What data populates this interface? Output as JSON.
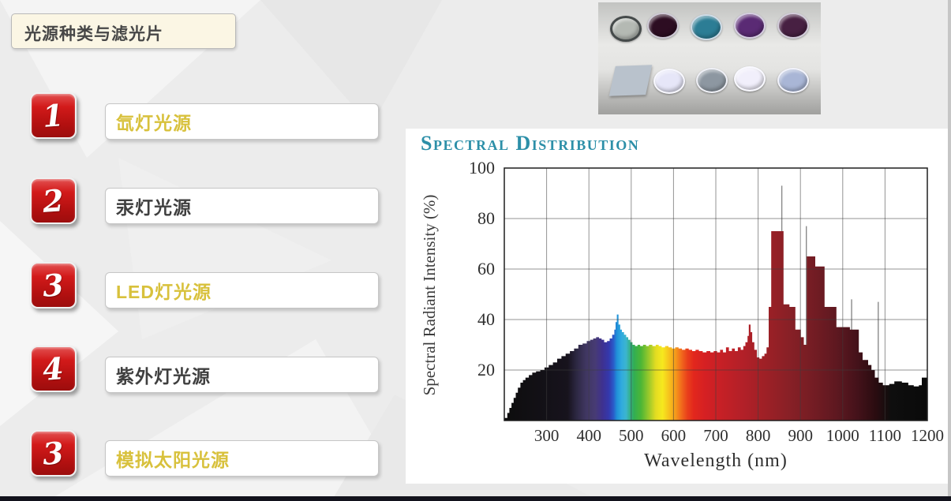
{
  "slide": {
    "title": "光源种类与滤光片",
    "gold_color": "#d8c13c",
    "dark_color": "#3f3f3f",
    "badge_red": "#c21414",
    "list_items": [
      {
        "number": "1",
        "label": "氙灯光源",
        "color": "gold"
      },
      {
        "number": "2",
        "label": "汞灯光源",
        "color": "dark"
      },
      {
        "number": "3",
        "label": "LED灯光源",
        "color": "gold"
      },
      {
        "number": "4",
        "label": "紫外灯光源",
        "color": "dark"
      },
      {
        "number": "3",
        "label": "模拟太阳光源",
        "color": "gold"
      }
    ]
  },
  "filters_photo": {
    "row1_circles": [
      "#b4b9b3",
      "#2d0d22",
      "#2c7d95",
      "#5a2a74",
      "#472042"
    ],
    "row1_first_ring": "#454a4a",
    "row2_square": "#b9c2cc",
    "row2_circles": [
      "#e6e6f8",
      "#8d97a1",
      "#f1effb",
      "#a9b6d6"
    ]
  },
  "chart_data": {
    "type": "area",
    "title": "Spectral Distribution",
    "xlabel": "Wavelength (nm)",
    "ylabel": "Spectral Radiant Intensity (%)",
    "xlim": [
      200,
      1200
    ],
    "ylim": [
      0,
      100
    ],
    "x_ticks": [
      300,
      400,
      500,
      600,
      700,
      800,
      900,
      1000,
      1100,
      1200
    ],
    "y_ticks": [
      20,
      40,
      60,
      80,
      100
    ],
    "grid": true,
    "legend": "none",
    "title_color": "#2c8fa8",
    "steps": [
      [
        200,
        1
      ],
      [
        207,
        3
      ],
      [
        212,
        5
      ],
      [
        217,
        7
      ],
      [
        222,
        9
      ],
      [
        227,
        11
      ],
      [
        232,
        13
      ],
      [
        238,
        15
      ],
      [
        244,
        16
      ],
      [
        250,
        17
      ],
      [
        258,
        18
      ],
      [
        266,
        19
      ],
      [
        275,
        19.5
      ],
      [
        285,
        20
      ],
      [
        295,
        21
      ],
      [
        305,
        22
      ],
      [
        315,
        23
      ],
      [
        325,
        24.5
      ],
      [
        335,
        25.5
      ],
      [
        345,
        26.5
      ],
      [
        355,
        27.5
      ],
      [
        365,
        28.5
      ],
      [
        375,
        30
      ],
      [
        385,
        30.5
      ],
      [
        395,
        31.5
      ],
      [
        403,
        32
      ],
      [
        410,
        32.5
      ],
      [
        417,
        33
      ],
      [
        424,
        32.5
      ],
      [
        430,
        32
      ],
      [
        436,
        31
      ],
      [
        443,
        31.5
      ],
      [
        449,
        32.5
      ],
      [
        455,
        34
      ],
      [
        460,
        36
      ],
      [
        463,
        39
      ],
      [
        466,
        42
      ],
      [
        470,
        38
      ],
      [
        474,
        36
      ],
      [
        478,
        35
      ],
      [
        483,
        34
      ],
      [
        488,
        33
      ],
      [
        493,
        32
      ],
      [
        498,
        31
      ],
      [
        503,
        30
      ],
      [
        509,
        29.5
      ],
      [
        515,
        30
      ],
      [
        521,
        29.5
      ],
      [
        528,
        30
      ],
      [
        535,
        29.5
      ],
      [
        542,
        30
      ],
      [
        550,
        29.5
      ],
      [
        558,
        30
      ],
      [
        565,
        29.5
      ],
      [
        572,
        29
      ],
      [
        580,
        29.5
      ],
      [
        588,
        29
      ],
      [
        596,
        28.5
      ],
      [
        604,
        29
      ],
      [
        612,
        28.5
      ],
      [
        620,
        28
      ],
      [
        628,
        28.5
      ],
      [
        636,
        28
      ],
      [
        644,
        27.5
      ],
      [
        652,
        28
      ],
      [
        660,
        27.5
      ],
      [
        669,
        27
      ],
      [
        678,
        27.5
      ],
      [
        687,
        27
      ],
      [
        695,
        27.5
      ],
      [
        703,
        27
      ],
      [
        710,
        28
      ],
      [
        717,
        27
      ],
      [
        724,
        29
      ],
      [
        731,
        27.5
      ],
      [
        738,
        28.5
      ],
      [
        745,
        27.5
      ],
      [
        752,
        29
      ],
      [
        759,
        28
      ],
      [
        765,
        29.5
      ],
      [
        770,
        31
      ],
      [
        775,
        33.5
      ],
      [
        778,
        38
      ],
      [
        782,
        35
      ],
      [
        786,
        31
      ],
      [
        791,
        28
      ],
      [
        797,
        25
      ],
      [
        803,
        24.5
      ],
      [
        809,
        25.5
      ],
      [
        815,
        26.5
      ],
      [
        820,
        29
      ],
      [
        825,
        45
      ],
      [
        831,
        75
      ],
      [
        860,
        46
      ],
      [
        874,
        45
      ],
      [
        888,
        36
      ],
      [
        901,
        33
      ],
      [
        908,
        30
      ],
      [
        915,
        65
      ],
      [
        935,
        61
      ],
      [
        957,
        45
      ],
      [
        985,
        37
      ],
      [
        1017,
        36
      ],
      [
        1038,
        27
      ],
      [
        1047,
        24
      ],
      [
        1060,
        22
      ],
      [
        1068,
        20
      ],
      [
        1076,
        17
      ],
      [
        1085,
        15
      ],
      [
        1095,
        14
      ],
      [
        1110,
        14.5
      ],
      [
        1122,
        15.5
      ],
      [
        1140,
        15
      ],
      [
        1155,
        14
      ],
      [
        1168,
        13.5
      ],
      [
        1180,
        14
      ],
      [
        1187,
        17
      ]
    ],
    "spikes": [
      [
        856,
        93
      ],
      [
        914,
        77
      ],
      [
        1021,
        48
      ],
      [
        1084,
        47
      ]
    ],
    "spectrum_colors": [
      [
        200,
        "#0d0d0d"
      ],
      [
        350,
        "#17131d"
      ],
      [
        370,
        "#2c2741"
      ],
      [
        392,
        "#3f3660"
      ],
      [
        415,
        "#473b74"
      ],
      [
        432,
        "#3e3190"
      ],
      [
        447,
        "#3438ac"
      ],
      [
        458,
        "#2a5ac9"
      ],
      [
        466,
        "#2090d8"
      ],
      [
        477,
        "#30aadf"
      ],
      [
        488,
        "#3cb5cd"
      ],
      [
        497,
        "#34b18b"
      ],
      [
        507,
        "#32ae52"
      ],
      [
        523,
        "#4cb636"
      ],
      [
        543,
        "#a0ca2a"
      ],
      [
        558,
        "#e3dc22"
      ],
      [
        574,
        "#f6e91e"
      ],
      [
        589,
        "#f6c31d"
      ],
      [
        604,
        "#f59c1b"
      ],
      [
        619,
        "#f1691c"
      ],
      [
        633,
        "#e93f1b"
      ],
      [
        648,
        "#e2271d"
      ],
      [
        675,
        "#d52023"
      ],
      [
        715,
        "#c52026"
      ],
      [
        765,
        "#b22028"
      ],
      [
        815,
        "#9f2026"
      ],
      [
        865,
        "#8b2026"
      ],
      [
        925,
        "#761d24"
      ],
      [
        985,
        "#5e1820"
      ],
      [
        1035,
        "#44121a"
      ],
      [
        1078,
        "#2a0c10"
      ],
      [
        1115,
        "#0e0e0e"
      ],
      [
        1200,
        "#0a0a0a"
      ]
    ]
  }
}
